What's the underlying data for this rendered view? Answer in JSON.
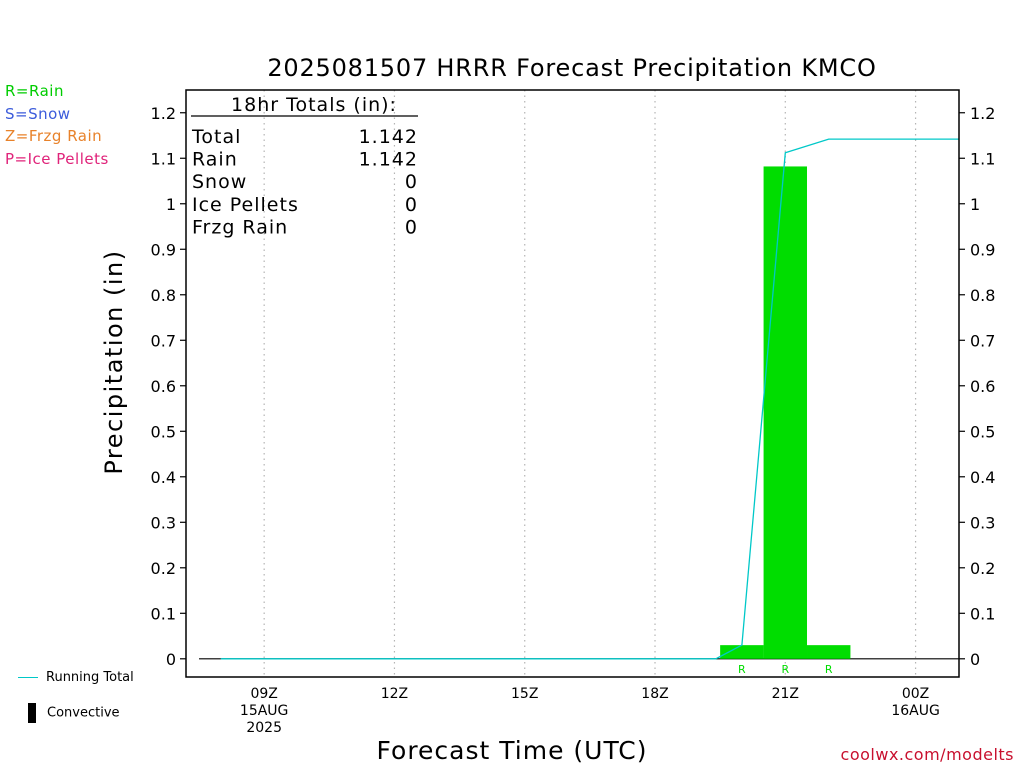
{
  "legend_types": [
    {
      "label": "R=Rain",
      "color": "#00cc00"
    },
    {
      "label": "S=Snow",
      "color": "#3b5bdb"
    },
    {
      "label": "Z=Frzg Rain",
      "color": "#e8822a"
    },
    {
      "label": "P=Ice Pellets",
      "color": "#e0237a"
    }
  ],
  "legend_bottom": {
    "running_total_label": "Running Total",
    "convective_label": "Convective",
    "running_total_color": "#00c8c8"
  },
  "site_label": "coolwx.com/modelts",
  "totals": {
    "header": "18hr Totals (in):",
    "rows": [
      {
        "label": "Total",
        "value": "1.142"
      },
      {
        "label": "Rain",
        "value": "1.142"
      },
      {
        "label": "Snow",
        "value": "0"
      },
      {
        "label": "Ice Pellets",
        "value": "0"
      },
      {
        "label": "Frzg Rain",
        "value": "0"
      }
    ]
  },
  "chart_data": {
    "type": "bar",
    "title": "2025081507 HRRR Forecast Precipitation KMCO",
    "xlabel": "Forecast Time (UTC)",
    "ylabel": "Precipitation (in)",
    "xlim": [
      7.2,
      25
    ],
    "ylim": [
      -0.04,
      1.25
    ],
    "y_ticks": [
      {
        "v": 0,
        "label": "0"
      },
      {
        "v": 0.1,
        "label": "0.1"
      },
      {
        "v": 0.2,
        "label": "0.2"
      },
      {
        "v": 0.3,
        "label": "0.3"
      },
      {
        "v": 0.4,
        "label": "0.4"
      },
      {
        "v": 0.5,
        "label": "0.5"
      },
      {
        "v": 0.6,
        "label": "0.6"
      },
      {
        "v": 0.7,
        "label": "0.7"
      },
      {
        "v": 0.8,
        "label": "0.8"
      },
      {
        "v": 0.9,
        "label": "0.9"
      },
      {
        "v": 1.0,
        "label": "1"
      },
      {
        "v": 1.1,
        "label": "1.1"
      },
      {
        "v": 1.2,
        "label": "1.2"
      }
    ],
    "x_ticks": [
      {
        "hour": 9,
        "lines": [
          "09Z",
          "15AUG",
          "2025"
        ]
      },
      {
        "hour": 12,
        "lines": [
          "12Z"
        ]
      },
      {
        "hour": 15,
        "lines": [
          "15Z"
        ]
      },
      {
        "hour": 18,
        "lines": [
          "18Z"
        ]
      },
      {
        "hour": 21,
        "lines": [
          "21Z"
        ]
      },
      {
        "hour": 24,
        "lines": [
          "00Z",
          "16AUG"
        ]
      }
    ],
    "bars": [
      {
        "hour": 20,
        "value": 0.03,
        "type": "R"
      },
      {
        "hour": 21,
        "value": 1.082,
        "type": "R"
      },
      {
        "hour": 22,
        "value": 0.03,
        "type": "R"
      }
    ],
    "bar_color": "#00dd00",
    "running_total": {
      "x": [
        8,
        9,
        10,
        11,
        12,
        13,
        14,
        15,
        16,
        17,
        18,
        19,
        19.4,
        20,
        21,
        22,
        23,
        24,
        25
      ],
      "y": [
        0,
        0,
        0,
        0,
        0,
        0,
        0,
        0,
        0,
        0,
        0,
        0,
        0,
        0.03,
        1.112,
        1.142,
        1.142,
        1.142,
        1.142
      ]
    }
  }
}
